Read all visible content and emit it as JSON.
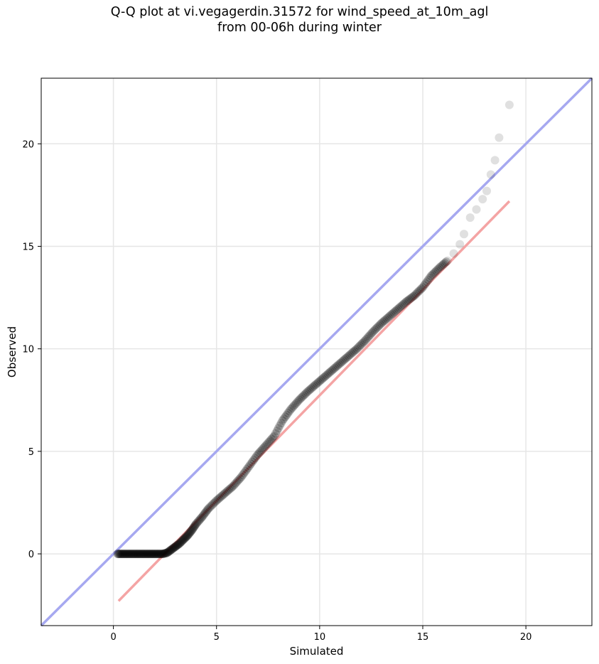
{
  "chart_data": {
    "type": "scatter",
    "title_line1": "Q-Q plot at vi.vegagerdin.31572 for wind_speed_at_10m_agl",
    "title_line2": "from 00-06h during winter",
    "xlabel": "Simulated",
    "ylabel": "Observed",
    "xlim": [
      -3.5,
      23.2
    ],
    "ylim": [
      -3.5,
      23.2
    ],
    "xticks": [
      0,
      5,
      10,
      15,
      20
    ],
    "yticks": [
      0,
      5,
      10,
      15,
      20
    ],
    "grid": true,
    "identity_line": {
      "color": "#a6a8f0"
    },
    "fit_line": {
      "color": "#f4a4a4",
      "x": [
        0.25,
        19.2
      ],
      "y": [
        -2.3,
        17.2
      ]
    },
    "points_color": "#000000",
    "quantiles": {
      "x": [
        0.2,
        0.4,
        0.6,
        0.8,
        1.0,
        1.2,
        1.4,
        1.6,
        1.8,
        2.0,
        2.2,
        2.4,
        2.6,
        2.8,
        3.0,
        3.2,
        3.4,
        3.6,
        3.8,
        4.0,
        4.3,
        4.6,
        5.0,
        5.4,
        5.8,
        6.2,
        6.6,
        7.0,
        7.4,
        7.8,
        8.2,
        8.6,
        9.0,
        9.4,
        9.8,
        10.2,
        10.6,
        11.0,
        11.4,
        11.8,
        12.2,
        12.6,
        13.0,
        13.4,
        13.8,
        14.2,
        14.6,
        15.0,
        15.4,
        15.8,
        16.2,
        16.5,
        16.8,
        17.0,
        17.3,
        17.6,
        17.9,
        18.1,
        18.3,
        18.5,
        18.7,
        19.2
      ],
      "y": [
        0.0,
        0.0,
        0.0,
        0.0,
        0.0,
        0.0,
        0.0,
        0.0,
        0.0,
        0.0,
        0.0,
        0.0,
        0.05,
        0.2,
        0.35,
        0.5,
        0.7,
        0.9,
        1.15,
        1.45,
        1.8,
        2.2,
        2.6,
        2.95,
        3.3,
        3.75,
        4.3,
        4.85,
        5.3,
        5.75,
        6.5,
        7.05,
        7.5,
        7.9,
        8.25,
        8.6,
        8.95,
        9.3,
        9.65,
        10.0,
        10.4,
        10.85,
        11.25,
        11.6,
        11.95,
        12.3,
        12.6,
        13.0,
        13.55,
        13.95,
        14.3,
        14.65,
        15.1,
        15.6,
        16.4,
        16.8,
        17.3,
        17.7,
        18.5,
        19.2,
        20.3,
        21.9
      ]
    }
  }
}
